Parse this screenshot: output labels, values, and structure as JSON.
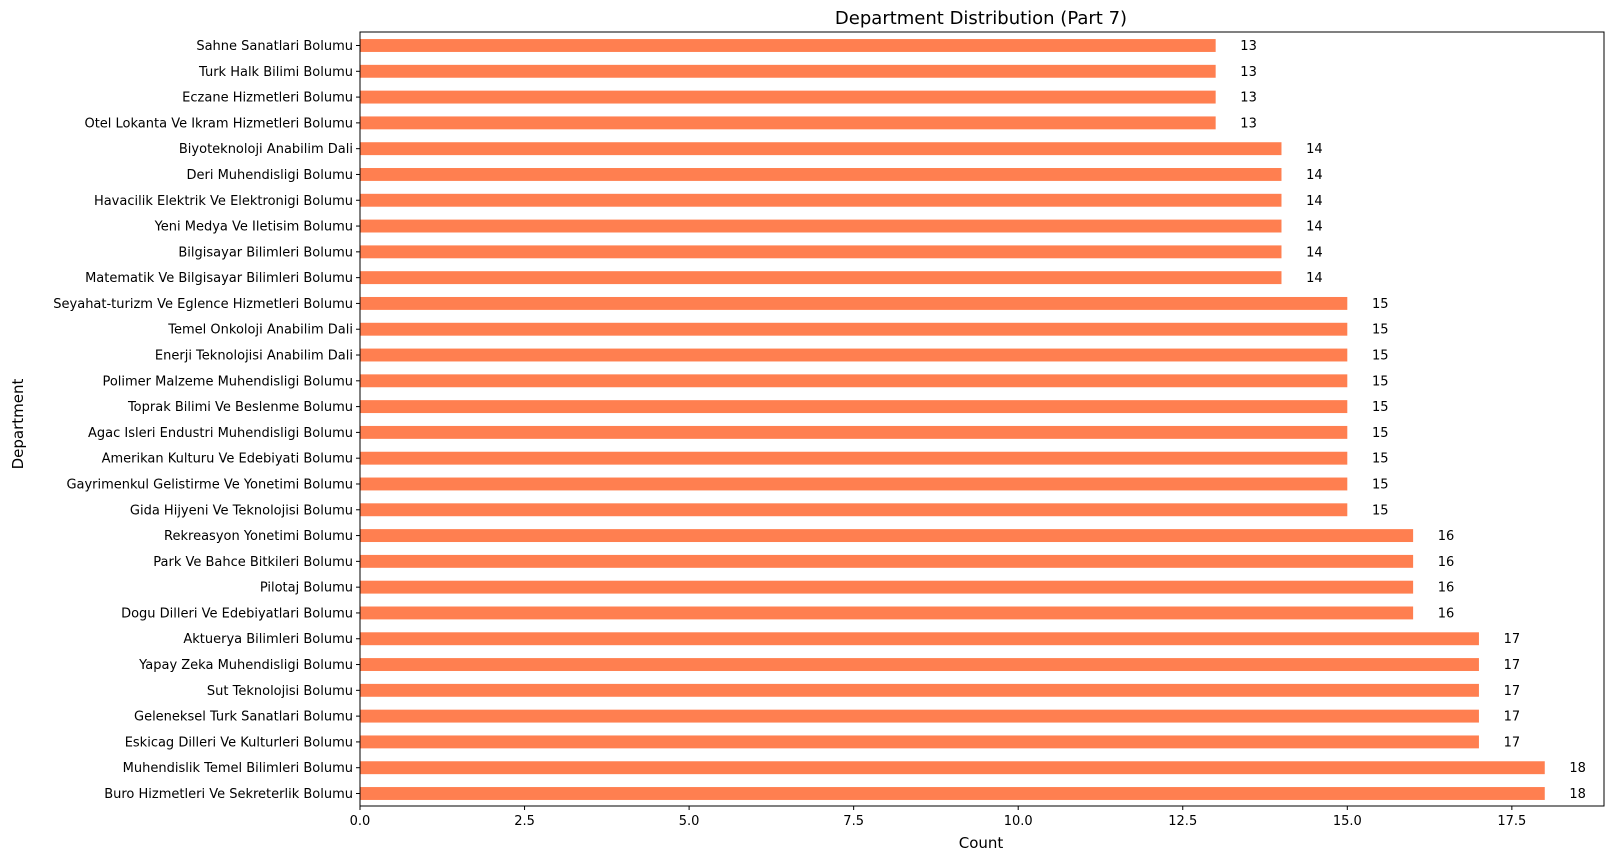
{
  "chart_data": {
    "type": "bar",
    "orientation": "horizontal",
    "title": "Department Distribution (Part 7)",
    "xlabel": "Count",
    "ylabel": "Department",
    "xlim": [
      0,
      18.9
    ],
    "xticks": [
      0,
      2.5,
      5,
      7.5,
      10,
      12.5,
      15,
      17.5
    ],
    "xtick_labels": [
      "0.0",
      "2.5",
      "5.0",
      "7.5",
      "10.0",
      "12.5",
      "15.0",
      "17.5"
    ],
    "grid": false,
    "bar_color": "#ff7f50",
    "categories": [
      "Sahne Sanatlari Bolumu",
      "Turk Halk Bilimi Bolumu",
      "Eczane Hizmetleri Bolumu",
      "Otel Lokanta Ve Ikram Hizmetleri Bolumu",
      "Biyoteknoloji Anabilim Dali",
      "Deri Muhendisligi Bolumu",
      "Havacilik Elektrik Ve Elektronigi Bolumu",
      "Yeni Medya Ve Iletisim Bolumu",
      "Bilgisayar Bilimleri Bolumu",
      "Matematik Ve Bilgisayar Bilimleri Bolumu",
      "Seyahat-turizm Ve Eglence Hizmetleri Bolumu",
      "Temel Onkoloji Anabilim Dali",
      "Enerji Teknolojisi Anabilim Dali",
      "Polimer Malzeme Muhendisligi Bolumu",
      "Toprak Bilimi Ve Beslenme Bolumu",
      "Agac Isleri Endustri Muhendisligi Bolumu",
      "Amerikan Kulturu Ve Edebiyati Bolumu",
      "Gayrimenkul Gelistirme Ve Yonetimi Bolumu",
      "Gida Hijyeni Ve Teknolojisi Bolumu",
      "Rekreasyon Yonetimi Bolumu",
      "Park Ve Bahce Bitkileri Bolumu",
      "Pilotaj Bolumu",
      "Dogu Dilleri Ve Edebiyatlari Bolumu",
      "Aktuerya Bilimleri Bolumu",
      "Yapay Zeka Muhendisligi Bolumu",
      "Sut Teknolojisi Bolumu",
      "Geleneksel Turk Sanatlari Bolumu",
      "Eskicag Dilleri Ve Kulturleri Bolumu",
      "Muhendislik Temel Bilimleri Bolumu",
      "Buro Hizmetleri Ve Sekreterlik Bolumu"
    ],
    "values": [
      13,
      13,
      13,
      13,
      14,
      14,
      14,
      14,
      14,
      14,
      15,
      15,
      15,
      15,
      15,
      15,
      15,
      15,
      15,
      16,
      16,
      16,
      16,
      17,
      17,
      17,
      17,
      17,
      18,
      18
    ]
  }
}
